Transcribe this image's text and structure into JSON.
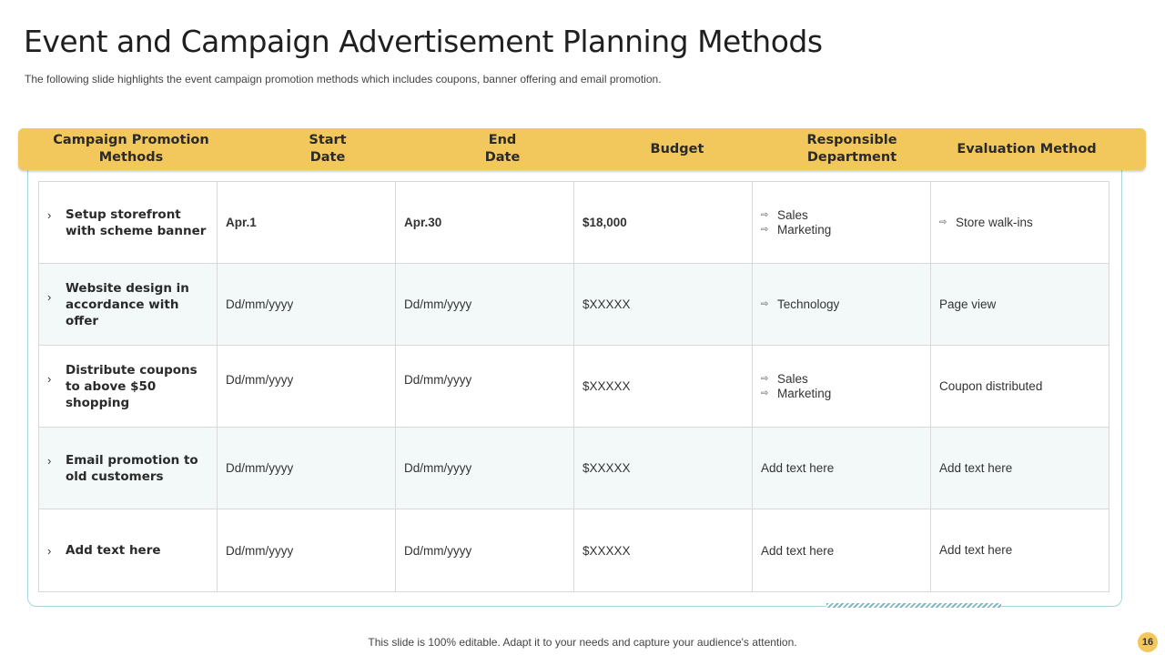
{
  "slide": {
    "title": "Event and Campaign Advertisement Planning Methods",
    "subtitle": "The following slide highlights the event campaign promotion methods which includes coupons, banner offering and email promotion.",
    "footer": "This slide is 100% editable. Adapt it to your needs and capture your audience's attention.",
    "page_number": "16"
  },
  "table": {
    "headers": {
      "methods_line1": "Campaign Promotion",
      "methods_line2": "Methods",
      "start_line1": "Start",
      "start_line2": "Date",
      "end_line1": "End",
      "end_line2": "Date",
      "budget": "Budget",
      "department_line1": "Responsible",
      "department_line2": "Department",
      "evaluation": "Evaluation Method"
    },
    "rows": [
      {
        "method": "Setup storefront with scheme banner",
        "start": "Apr.1",
        "end": "Apr.30",
        "budget": "$18,000",
        "department": [
          "Sales",
          "Marketing"
        ],
        "evaluation": "Store walk-ins"
      },
      {
        "method": "Website design in accordance with offer",
        "start": "Dd/mm/yyyy",
        "end": "Dd/mm/yyyy",
        "budget": "$XXXXX",
        "department": [
          "Technology"
        ],
        "evaluation": "Page view"
      },
      {
        "method": "Distribute coupons to above $50 shopping",
        "start": "Dd/mm/yyyy",
        "end": "Dd/mm/yyyy",
        "budget": "$XXXXX",
        "department": [
          "Sales",
          "Marketing"
        ],
        "evaluation": "Coupon  distributed"
      },
      {
        "method": "Email promotion to old customers",
        "start": "Dd/mm/yyyy",
        "end": "Dd/mm/yyyy",
        "budget": "$XXXXX",
        "department": "Add text here",
        "evaluation": "Add text here"
      },
      {
        "method": "Add text here",
        "start": "Dd/mm/yyyy",
        "end": "Dd/mm/yyyy",
        "budget": "$XXXXX",
        "department": "Add text here",
        "evaluation": "Add text here"
      }
    ]
  },
  "icons": {
    "method_bullet": "chevron-right-icon",
    "list_bullet": "double-arrow-right-icon"
  },
  "colors": {
    "header_fill": "#f2c85c",
    "frame_border": "#a8d4d8",
    "alt_row": "#f3f9f9"
  }
}
